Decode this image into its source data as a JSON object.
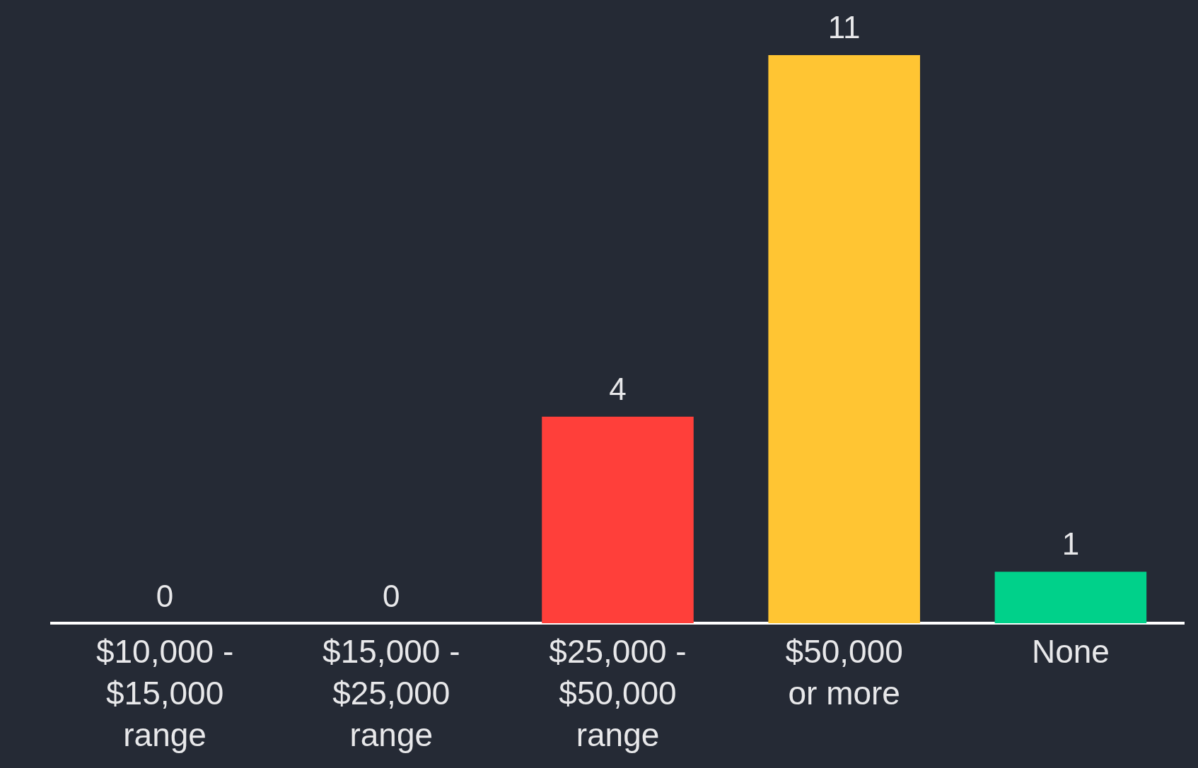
{
  "chart_data": {
    "type": "bar",
    "categories": [
      "$10,000 - $15,000 range",
      "$15,000 - $25,000 range",
      "$25,000 - $50,000 range",
      "$50,000 or more",
      "None"
    ],
    "values": [
      0,
      0,
      4,
      11,
      1
    ],
    "colors": [
      null,
      null,
      "#ff3f3a",
      "#ffc533",
      "#00d18a"
    ],
    "data_labels": true,
    "grid": false,
    "legend": false
  }
}
